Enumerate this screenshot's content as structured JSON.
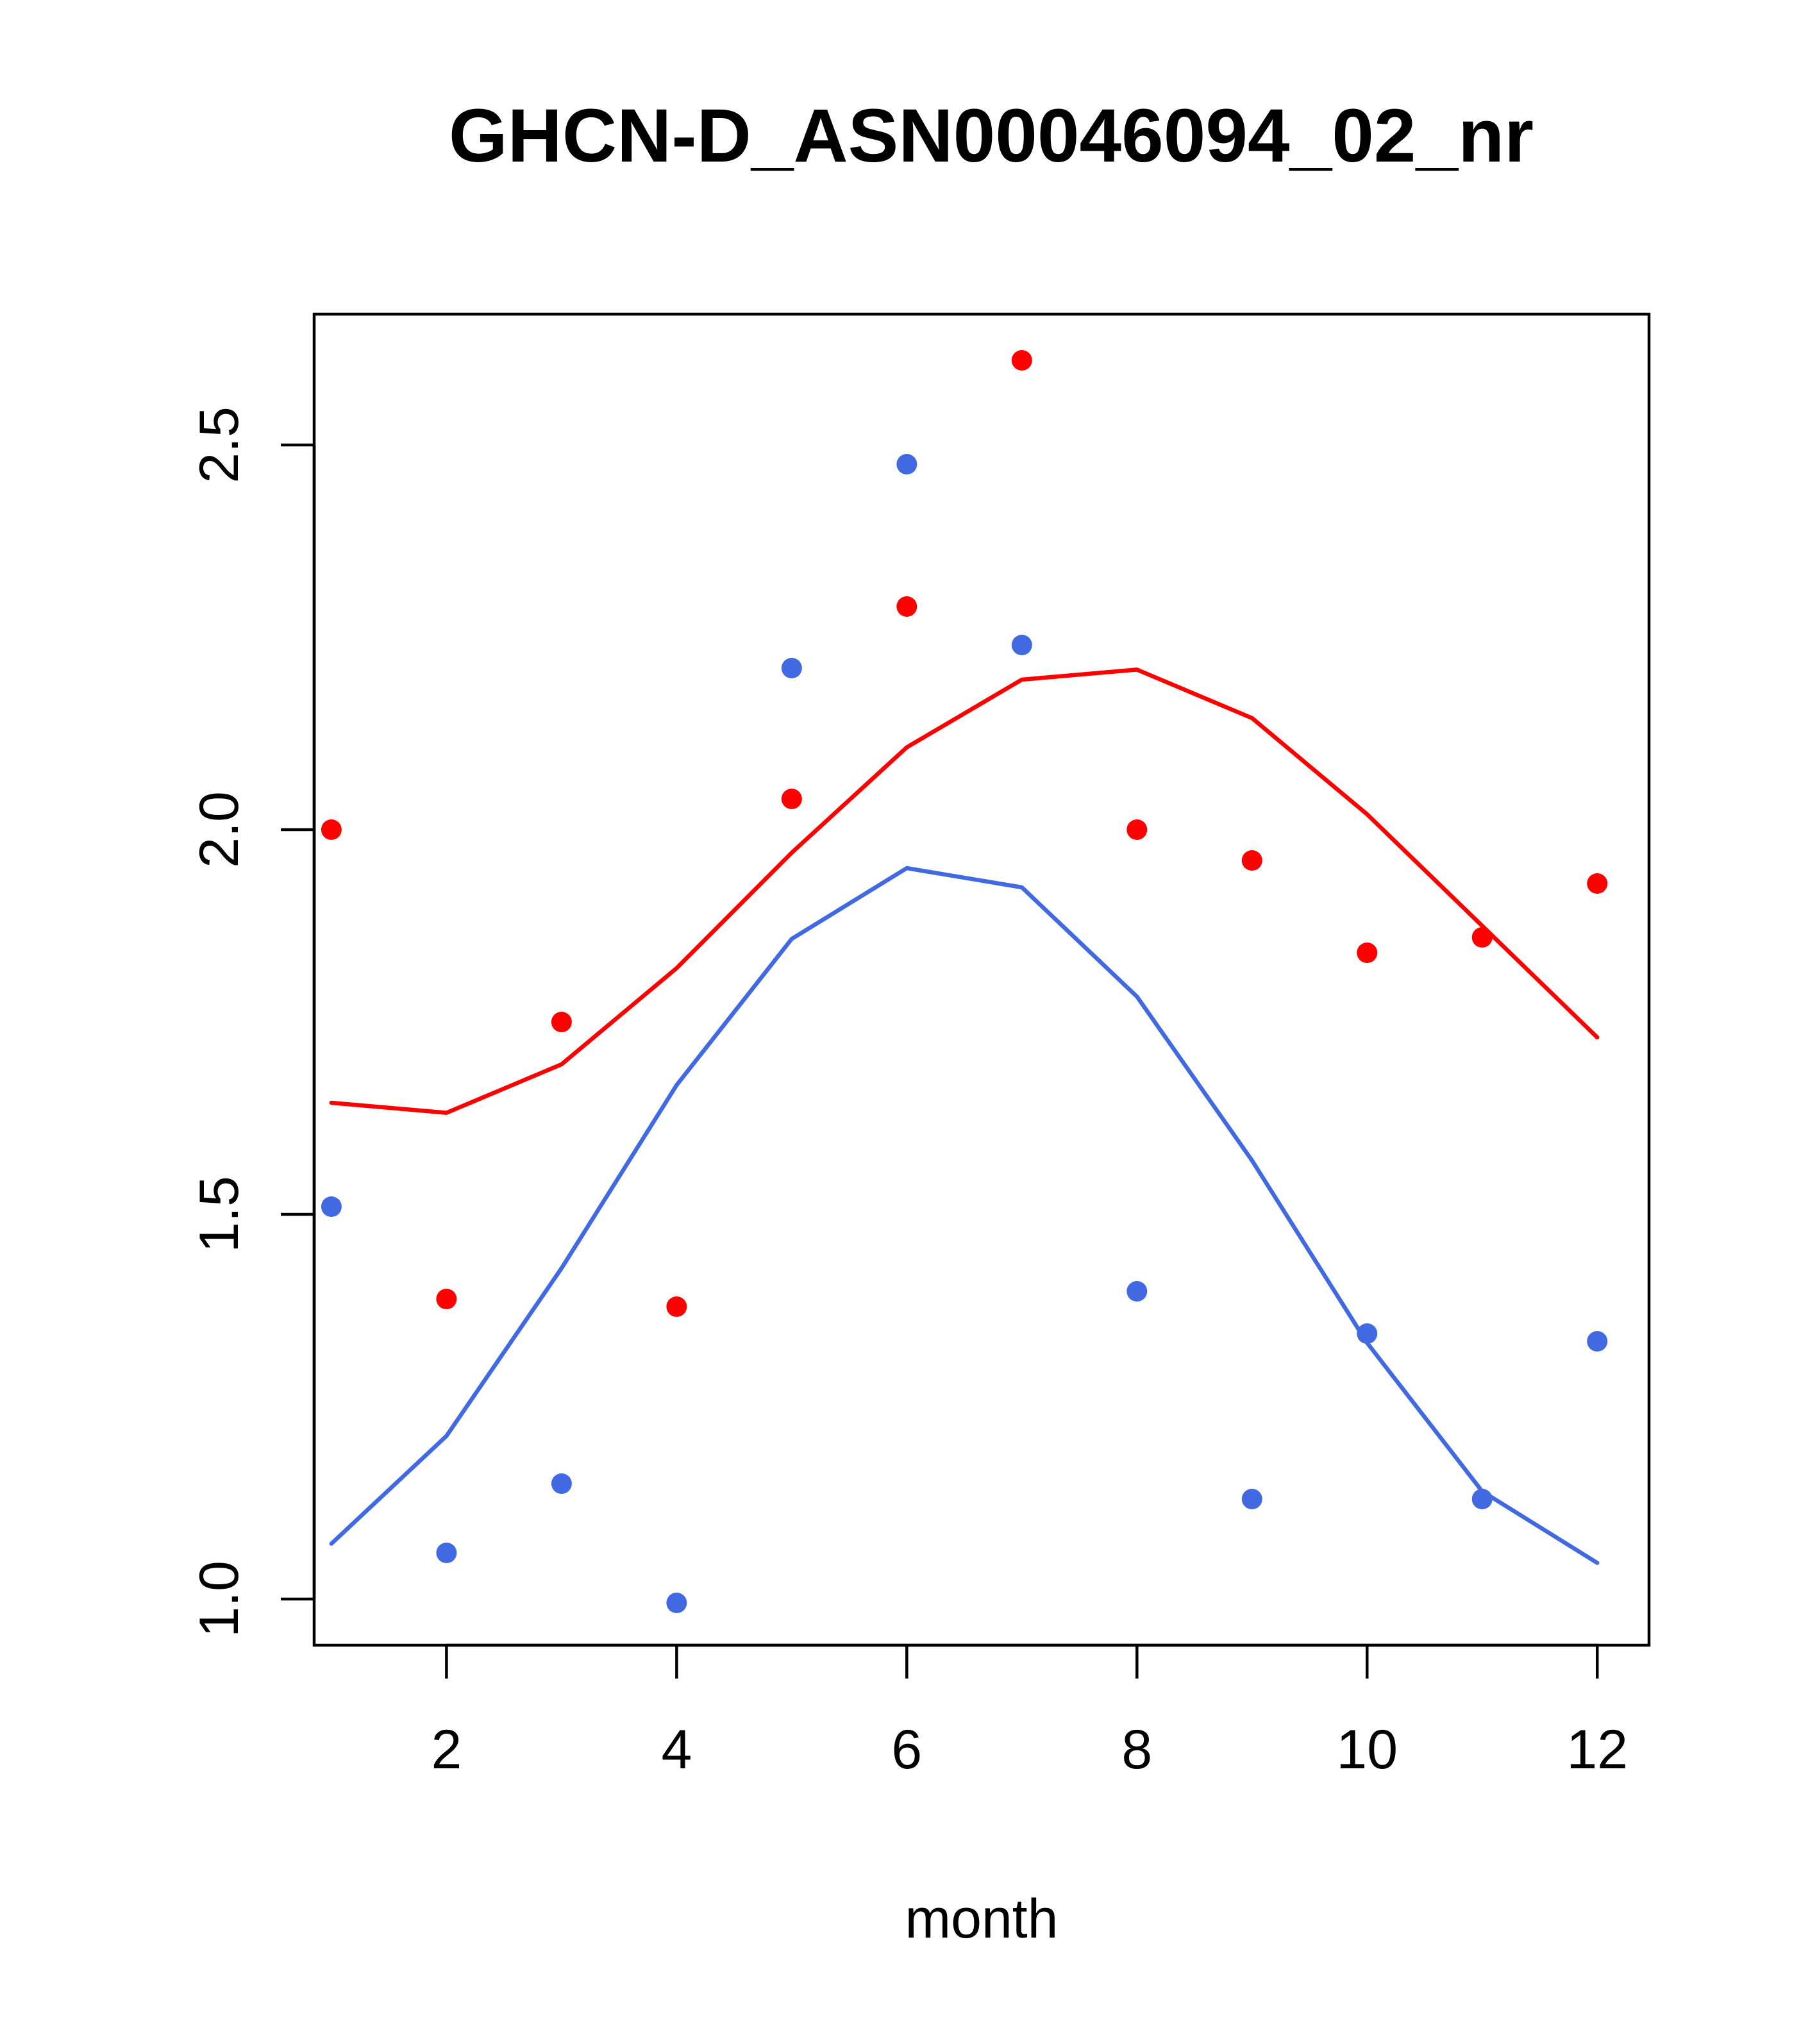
{
  "chart_data": {
    "type": "scatter",
    "title": "GHCN-D_ASN00046094_02_nr",
    "xlabel": "month",
    "ylabel": "",
    "xlim": [
      0.85,
      12.45
    ],
    "ylim": [
      0.94,
      2.67
    ],
    "xticks": [
      2,
      4,
      6,
      8,
      10,
      12
    ],
    "xtick_labels": [
      "2",
      "4",
      "6",
      "8",
      "10",
      "12"
    ],
    "yticks": [
      1.0,
      1.5,
      2.0,
      2.5
    ],
    "ytick_labels": [
      "1.0",
      "1.5",
      "2.0",
      "2.5"
    ],
    "grid": false,
    "legend": "none",
    "series": [
      {
        "color": "#ff0000",
        "points": {
          "x": [
            1,
            2,
            3,
            4,
            5,
            6,
            7,
            8,
            9,
            10,
            11,
            12
          ],
          "y": [
            2.0,
            1.39,
            1.75,
            1.38,
            2.04,
            2.29,
            2.61,
            2.0,
            1.96,
            1.84,
            1.86,
            1.93
          ]
        },
        "line": {
          "x": [
            1,
            2,
            3,
            4,
            5,
            6,
            7,
            8,
            9,
            10,
            11,
            12
          ],
          "y": [
            1.645,
            1.632,
            1.695,
            1.82,
            1.97,
            2.107,
            2.195,
            2.208,
            2.145,
            2.02,
            1.875,
            1.73
          ]
        }
      },
      {
        "color": "#4169e1",
        "points": {
          "x": [
            1,
            2,
            3,
            4,
            5,
            6,
            7,
            8,
            9,
            10,
            11,
            12
          ],
          "y": [
            1.51,
            1.06,
            1.15,
            0.995,
            2.21,
            2.475,
            2.24,
            1.4,
            1.13,
            1.345,
            1.13,
            1.335
          ]
        },
        "line": {
          "x": [
            1,
            2,
            3,
            4,
            5,
            6,
            7,
            8,
            9,
            10,
            11,
            12
          ],
          "y": [
            1.072,
            1.212,
            1.43,
            1.668,
            1.858,
            1.95,
            1.925,
            1.783,
            1.57,
            1.333,
            1.14,
            1.047
          ]
        }
      }
    ]
  }
}
